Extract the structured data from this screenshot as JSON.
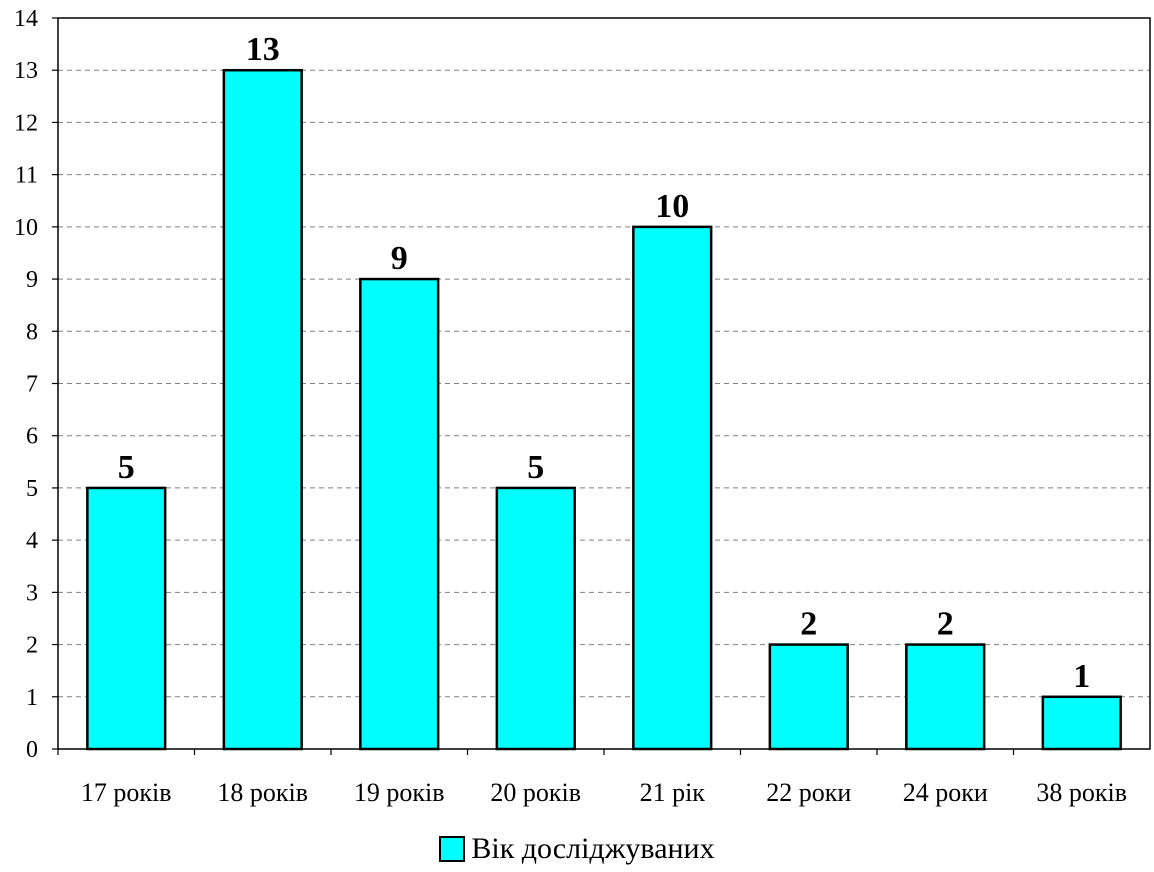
{
  "chart_data": {
    "type": "bar",
    "categories": [
      "17 років",
      "18 років",
      "19 років",
      "20 років",
      "21 рік",
      "22 роки",
      "24 роки",
      "38 років"
    ],
    "series": [
      {
        "name": "Вік досліджуваних",
        "values": [
          5,
          13,
          9,
          5,
          10,
          2,
          2,
          1
        ],
        "color": "#00FFFF"
      }
    ],
    "data_labels": [
      "5",
      "13",
      "9",
      "5",
      "10",
      "2",
      "2",
      "1"
    ],
    "y_ticks": [
      "0",
      "1",
      "2",
      "3",
      "4",
      "5",
      "6",
      "7",
      "8",
      "9",
      "10",
      "11",
      "12",
      "13",
      "14"
    ],
    "ylim": [
      0,
      14
    ],
    "grid": true,
    "grid_style": "dashed",
    "legend_position": "bottom",
    "colors": {
      "bar_fill": "#00FFFF",
      "bar_stroke": "#000000",
      "grid": "#808080",
      "axis": "#000000"
    }
  }
}
